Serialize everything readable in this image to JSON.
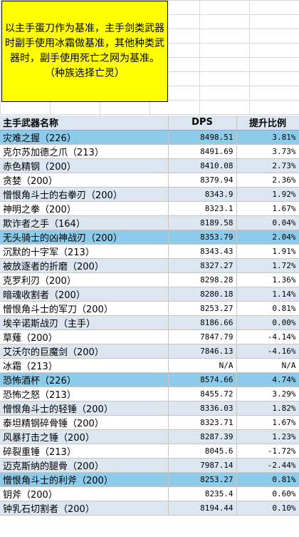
{
  "note": {
    "text": "以主手蛋刀作为基准，主手剑类武器时副手使用冰霜做基准，其他种类武器时，副手使用死亡之网为基准。（种族选择亡灵）"
  },
  "table": {
    "headers": [
      "主手武器名称",
      "DPS",
      "提升比例"
    ],
    "rows": [
      {
        "name": "灾难之握（226）",
        "dps": "8498.51",
        "pct": "3.81%",
        "style": "hl"
      },
      {
        "name": "克尔苏加德之爪（213）",
        "dps": "8491.69",
        "pct": "3.73%",
        "style": "white"
      },
      {
        "name": "赤色精钢（200）",
        "dps": "8410.08",
        "pct": "2.73%",
        "style": "light"
      },
      {
        "name": "贪婪（200）",
        "dps": "8379.94",
        "pct": "2.36%",
        "style": "white"
      },
      {
        "name": "憎恨角斗士的右拳刃（200）",
        "dps": "8343.9",
        "pct": "1.92%",
        "style": "light"
      },
      {
        "name": "神明之拳（200）",
        "dps": "8323.1",
        "pct": "1.67%",
        "style": "white"
      },
      {
        "name": "欺诈者之手（164）",
        "dps": "8189.58",
        "pct": "0.04%",
        "style": "light"
      },
      {
        "name": "无头骑士的凶神战刃（200）",
        "dps": "8353.79",
        "pct": "2.04%",
        "style": "hl"
      },
      {
        "name": "沉默的十字军（213）",
        "dps": "8343.43",
        "pct": "1.91%",
        "style": "white"
      },
      {
        "name": "被放逐者的折磨（200）",
        "dps": "8327.27",
        "pct": "1.72%",
        "style": "light"
      },
      {
        "name": "克罗利刃（200）",
        "dps": "8298.28",
        "pct": "1.36%",
        "style": "white"
      },
      {
        "name": "暗魂收割者（200）",
        "dps": "8280.18",
        "pct": "1.14%",
        "style": "light"
      },
      {
        "name": "憎恨角斗士的军刀（200）",
        "dps": "8253.27",
        "pct": "0.81%",
        "style": "white"
      },
      {
        "name": "埃辛诺斯战刃（主手）",
        "dps": "8186.66",
        "pct": "0.00%",
        "style": "light"
      },
      {
        "name": "草薙（200）",
        "dps": "7847.79",
        "pct": "-4.14%",
        "style": "white"
      },
      {
        "name": "艾沃尔的巨魔剑（200）",
        "dps": "7846.13",
        "pct": "-4.16%",
        "style": "light"
      },
      {
        "name": "冰霜（213）",
        "dps": "N/A",
        "pct": "N/A",
        "style": "white"
      },
      {
        "name": "恐怖酒杯（226）",
        "dps": "8574.66",
        "pct": "4.74%",
        "style": "hl"
      },
      {
        "name": "恐怖之怒（213）",
        "dps": "8455.72",
        "pct": "3.29%",
        "style": "white"
      },
      {
        "name": "憎恨角斗士的轻锤（200）",
        "dps": "8336.03",
        "pct": "1.82%",
        "style": "light"
      },
      {
        "name": "泰坦精钢碎骨锤（200）",
        "dps": "8323.71",
        "pct": "1.67%",
        "style": "white"
      },
      {
        "name": "风暴打击之锤（200）",
        "dps": "8287.39",
        "pct": "1.23%",
        "style": "light"
      },
      {
        "name": "碎裂重锤（213）",
        "dps": "8045.6",
        "pct": "-1.72%",
        "style": "white"
      },
      {
        "name": "迈克斯纳的腿骨（200）",
        "dps": "7987.14",
        "pct": "-2.44%",
        "style": "light"
      },
      {
        "name": "憎恨角斗士的利斧（200）",
        "dps": "8253.27",
        "pct": "0.81%",
        "style": "hl"
      },
      {
        "name": "钥斧（200）",
        "dps": "8235.4",
        "pct": "0.60%",
        "style": "white"
      },
      {
        "name": "钟乳石切割者（200）",
        "dps": "8194.44",
        "pct": "0.10%",
        "style": "light"
      }
    ]
  },
  "colors": {
    "note_bg": "#ffff00",
    "header_bg": "#dce6f1",
    "row_light": "#dce6f1",
    "row_highlight": "#8ccbea"
  }
}
